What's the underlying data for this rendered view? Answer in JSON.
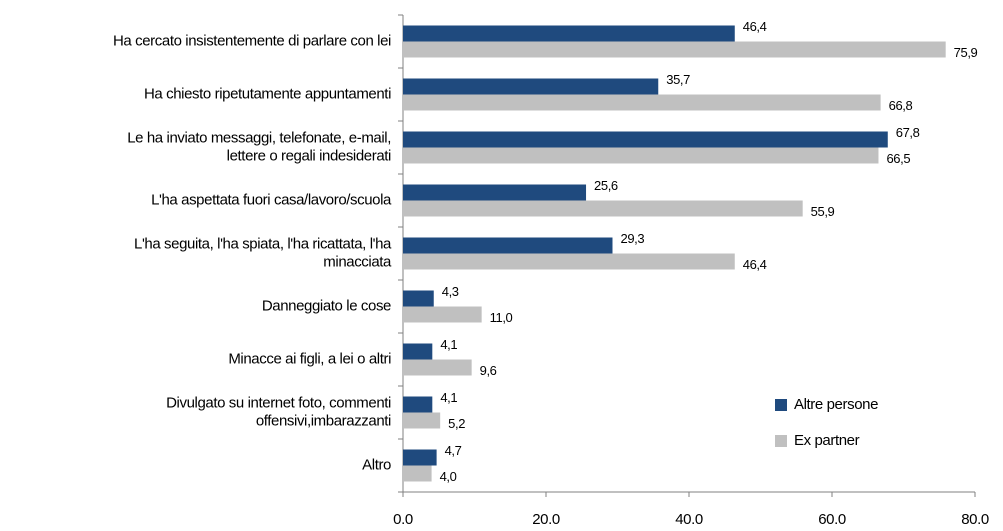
{
  "chart_data": {
    "type": "hbar",
    "categories": [
      "Ha cercato insistentemente di parlare con lei",
      "Ha chiesto ripetutamente appuntamenti",
      "Le ha inviato messaggi, telefonate, e-mail,\nlettere o regali indesiderati",
      "L'ha aspettata fuori casa/lavoro/scuola",
      "L'ha seguita, l'ha spiata, l'ha ricattata, l'ha\nminacciata",
      "Danneggiato le cose",
      "Minacce ai figli, a lei o altri",
      "Divulgato su internet foto, commenti\noffensivi,imbarazzanti",
      "Altro"
    ],
    "series": [
      {
        "name": "Altre persone",
        "color": "#1f4a7e",
        "values": [
          46.4,
          35.7,
          67.8,
          25.6,
          29.3,
          4.3,
          4.1,
          4.1,
          4.7
        ],
        "value_labels": [
          "46,4",
          "35,7",
          "67,8",
          "25,6",
          "29,3",
          "4,3",
          "4,1",
          "4,1",
          "4,7"
        ]
      },
      {
        "name": "Ex partner",
        "color": "#c0c0c0",
        "values": [
          75.9,
          66.8,
          66.5,
          55.9,
          46.4,
          11.0,
          9.6,
          5.2,
          4.0
        ],
        "value_labels": [
          "75,9",
          "66,8",
          "66,5",
          "55,9",
          "46,4",
          "11,0",
          "9,6",
          "5,2",
          "4,0"
        ]
      }
    ],
    "xlim": [
      0,
      80
    ],
    "xticks": [
      {
        "value": 0,
        "label": "0.0"
      },
      {
        "value": 20,
        "label": "20.0"
      },
      {
        "value": 40,
        "label": "40.0"
      },
      {
        "value": 60,
        "label": "60.0"
      },
      {
        "value": 80,
        "label": "80.0"
      }
    ],
    "grid": false,
    "legend": "lower right"
  }
}
